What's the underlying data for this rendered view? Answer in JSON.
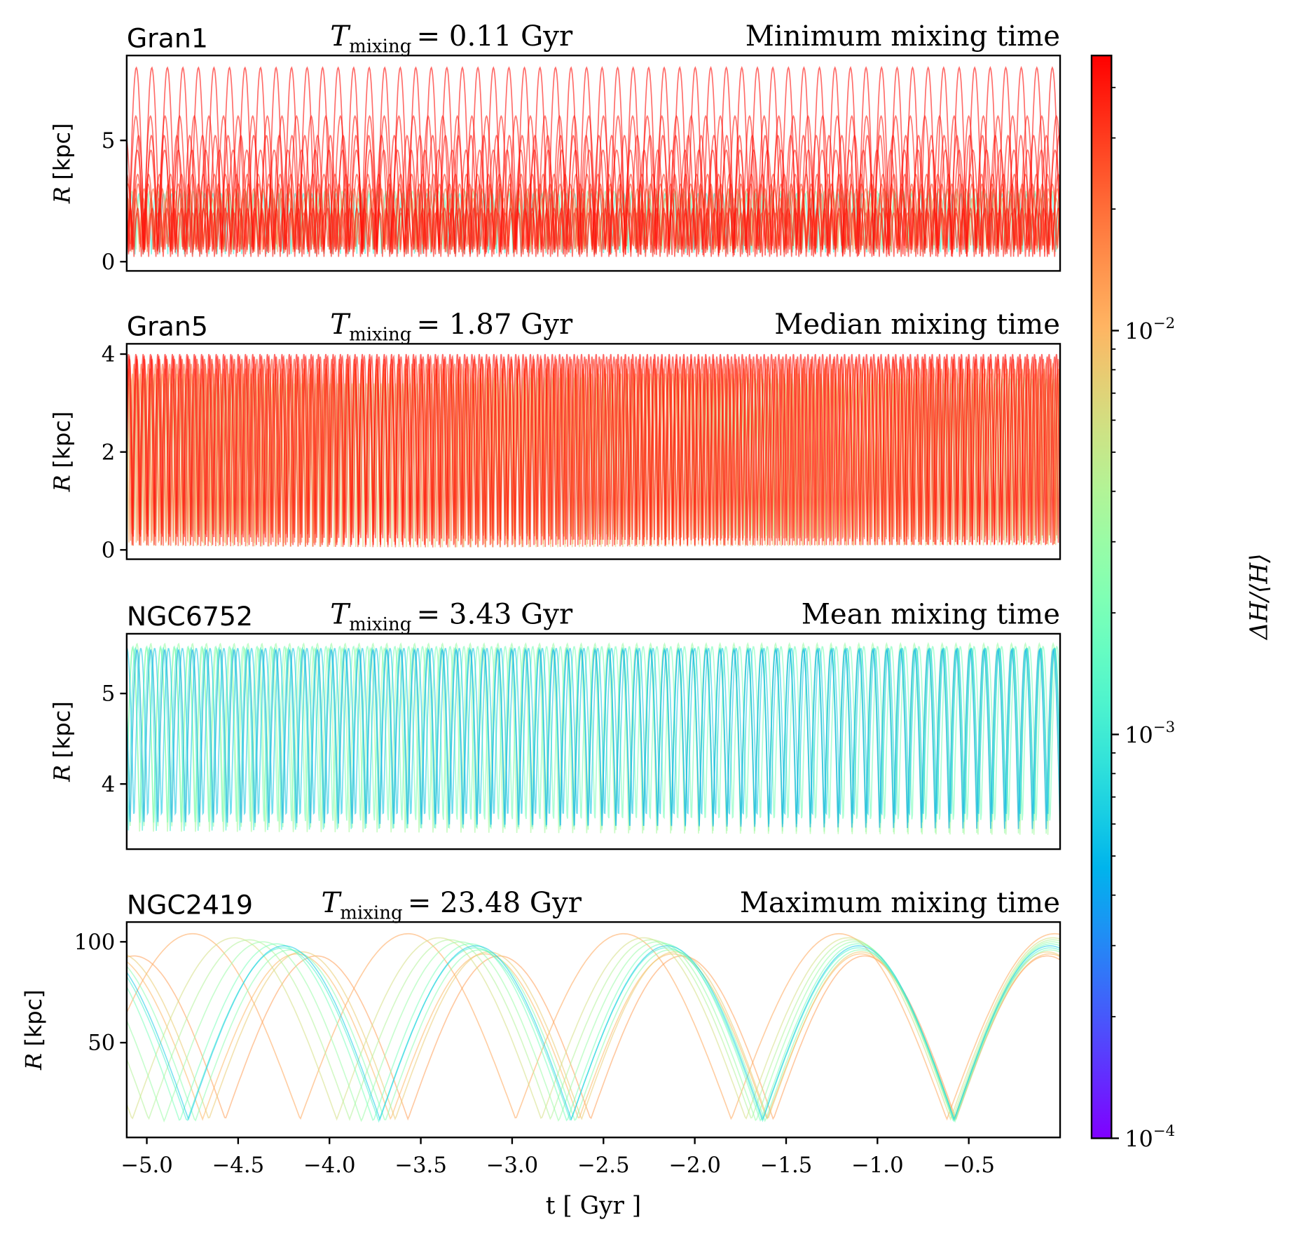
{
  "chart_data": {
    "type": "line",
    "xlabel": "t [ Gyr ]",
    "xlim": [
      -5.11,
      0.0
    ],
    "xticks": [
      -5.0,
      -4.5,
      -4.0,
      -3.5,
      -3.0,
      -2.5,
      -2.0,
      -1.5,
      -1.0,
      -0.5
    ],
    "xtick_labels": [
      "−5.0",
      "−4.5",
      "−4.0",
      "−3.5",
      "−3.0",
      "−2.5",
      "−2.0",
      "−1.5",
      "−1.0",
      "−0.5"
    ],
    "colorbar": {
      "label": "ΔH/⟨H⟩",
      "scale": "log",
      "colormap": "rainbow",
      "range": [
        0.0001,
        0.048
      ],
      "ticks": [
        {
          "value": 0.01,
          "base": "10",
          "exp": "−2"
        },
        {
          "value": 0.001,
          "base": "10",
          "exp": "−3"
        },
        {
          "value": 0.0001,
          "base": "10",
          "exp": "−4"
        }
      ]
    },
    "panels": [
      {
        "name": "Gran1",
        "tmix_symbol": "T",
        "tmix_sub": "mixing",
        "tmix_text": "= 0.11 Gyr",
        "note": "Minimum mixing time",
        "ylabel_var": "R",
        "ylabel_unit": "[kpc]",
        "ylim": [
          -0.38,
          8.5
        ],
        "yticks": [
          0,
          5
        ],
        "ytick_labels": [
          "0",
          "5"
        ],
        "orbits_columns": [
          "rmin",
          "rmax",
          "period",
          "t0",
          "dH"
        ],
        "orbits": [
          [
            0.2,
            8.0,
            0.085,
            0.0,
            0.045
          ],
          [
            0.3,
            6.0,
            0.08,
            0.02,
            0.04
          ],
          [
            0.3,
            5.2,
            0.07,
            0.03,
            0.042
          ],
          [
            0.2,
            4.6,
            0.075,
            0.01,
            0.04
          ],
          [
            0.5,
            3.6,
            0.06,
            0.02,
            0.035
          ],
          [
            0.4,
            3.2,
            0.055,
            0.04,
            0.03
          ],
          [
            0.6,
            3.0,
            0.05,
            0.01,
            0.02
          ],
          [
            0.3,
            2.8,
            0.045,
            0.02,
            0.001
          ],
          [
            0.5,
            2.9,
            0.048,
            0.03,
            0.003
          ],
          [
            0.4,
            2.6,
            0.042,
            0.0,
            0.015
          ],
          [
            0.2,
            2.2,
            0.04,
            0.01,
            0.04
          ],
          [
            0.6,
            2.0,
            0.038,
            0.02,
            0.03
          ]
        ]
      },
      {
        "name": "Gran5",
        "tmix_symbol": "T",
        "tmix_sub": "mixing",
        "tmix_text": "= 1.87 Gyr",
        "note": "Median mixing time",
        "ylabel_var": "R",
        "ylabel_unit": "[kpc]",
        "ylim": [
          -0.19,
          4.21
        ],
        "yticks": [
          0,
          2,
          4
        ],
        "ytick_labels": [
          "0",
          "2",
          "4"
        ],
        "orbits_columns": [
          "rmin",
          "rmax",
          "period",
          "t0",
          "dH"
        ],
        "orbits": [
          [
            0.1,
            4.0,
            0.04,
            0.0,
            0.045
          ],
          [
            0.05,
            3.9,
            0.041,
            0.01,
            0.03
          ],
          [
            0.15,
            3.8,
            0.039,
            0.02,
            0.02
          ],
          [
            0.1,
            3.6,
            0.0405,
            0.005,
            0.012
          ],
          [
            0.05,
            3.4,
            0.0395,
            0.015,
            0.007
          ],
          [
            0.2,
            3.5,
            0.0398,
            0.025,
            0.004
          ],
          [
            0.1,
            3.95,
            0.0402,
            0.03,
            0.04
          ],
          [
            0.1,
            3.7,
            0.0401,
            0.012,
            0.02
          ]
        ]
      },
      {
        "name": "NGC6752",
        "tmix_symbol": "T",
        "tmix_sub": "mixing",
        "tmix_text": "= 3.43 Gyr",
        "note": "Mean mixing time",
        "ylabel_var": "R",
        "ylabel_unit": "[kpc]",
        "ylim": [
          3.28,
          5.66
        ],
        "yticks": [
          4,
          5
        ],
        "ytick_labels": [
          "4",
          "5"
        ],
        "orbits_columns": [
          "rmin",
          "rmax",
          "period",
          "t0",
          "dH"
        ],
        "orbits": [
          [
            3.45,
            5.55,
            0.076,
            0.0,
            0.003
          ],
          [
            3.4,
            5.5,
            0.0765,
            0.01,
            0.0035
          ],
          [
            3.5,
            5.52,
            0.0755,
            0.02,
            0.002
          ],
          [
            3.48,
            5.5,
            0.0762,
            0.005,
            0.001
          ],
          [
            3.5,
            5.48,
            0.076,
            0.0,
            0.0004
          ],
          [
            3.55,
            5.5,
            0.0758,
            0.008,
            0.0006
          ]
        ]
      },
      {
        "name": "NGC2419",
        "tmix_symbol": "T",
        "tmix_sub": "mixing",
        "tmix_text": "= 23.48 Gyr",
        "note": "Maximum mixing time",
        "ylabel_var": "R",
        "ylabel_unit": "[kpc]",
        "ylim": [
          3.0,
          109.8
        ],
        "yticks": [
          50,
          100
        ],
        "ytick_labels": [
          "50",
          "100"
        ],
        "orbits_columns": [
          "rmin",
          "rmax",
          "period",
          "t0",
          "dH"
        ],
        "orbits": [
          [
            12,
            104,
            1.18,
            -0.62,
            0.012
          ],
          [
            12,
            93,
            1.0,
            -0.57,
            0.013
          ],
          [
            12,
            102,
            1.12,
            -0.6,
            0.006
          ],
          [
            12,
            101,
            1.1,
            -0.59,
            0.004
          ],
          [
            12,
            95,
            1.02,
            -0.58,
            0.008
          ],
          [
            11,
            100,
            1.08,
            -0.585,
            0.003
          ],
          [
            11,
            99,
            1.06,
            -0.58,
            0.002
          ],
          [
            11,
            97,
            1.05,
            -0.58,
            0.0012
          ],
          [
            12,
            98,
            1.048,
            -0.58,
            0.0006
          ],
          [
            11,
            96,
            1.04,
            -0.575,
            0.0025
          ],
          [
            12,
            94,
            1.03,
            -0.575,
            0.01
          ]
        ]
      }
    ]
  }
}
